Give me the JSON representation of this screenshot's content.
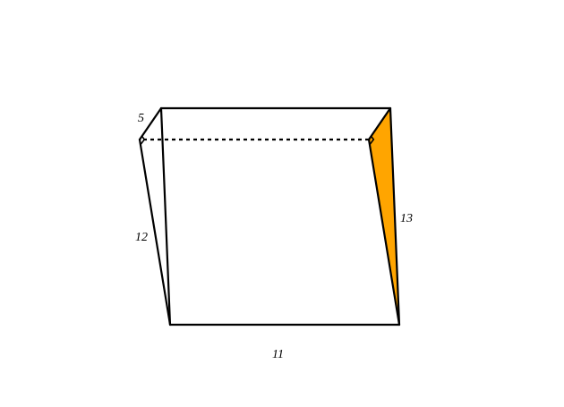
{
  "figure": {
    "face_color": "#FFA500",
    "line_color": "#000000",
    "labels": {
      "depth": "5",
      "height": "12",
      "hypotenuse": "13",
      "length": "11"
    }
  }
}
